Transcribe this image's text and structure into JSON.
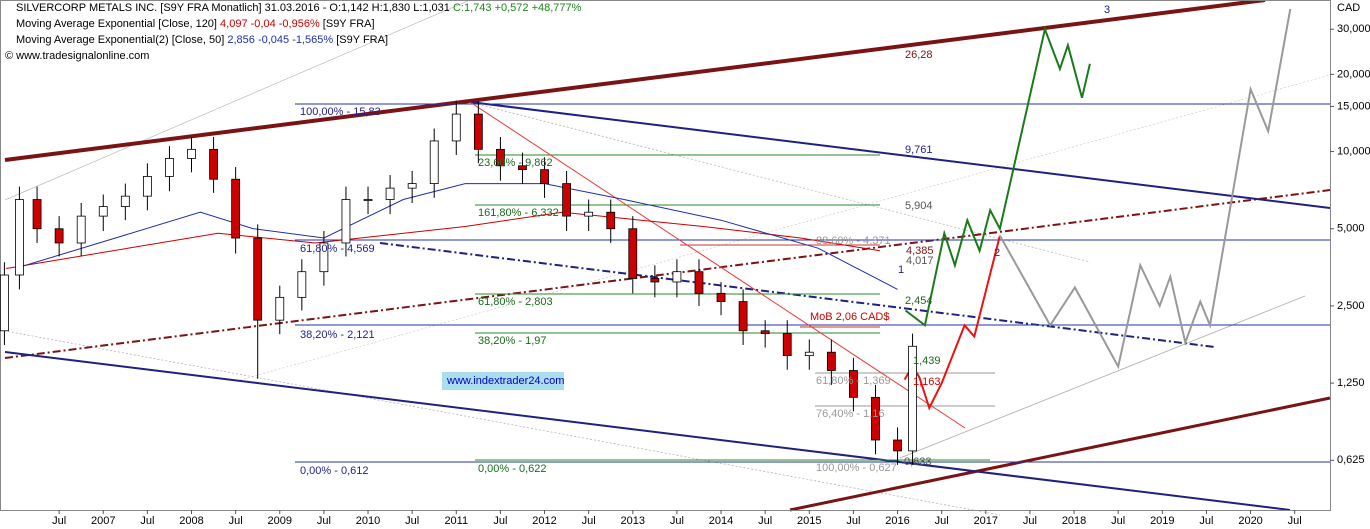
{
  "chart_data": {
    "type": "candlestick",
    "header": {
      "line1": "SILVERCORP METALS INC. [S9Y FRA  Monatlich] 31.03.2016 - O:1,142 H:1,830 L:1,031",
      "line1_change": "C:1,743 +0,572 +48,777%",
      "ma1_name": "Moving Average Exponential [Close, 120]",
      "ma1_values": "4,097 -0,04 -0,956%",
      "ma1_symbol": "[S9Y FRA]",
      "ma2_name": "Moving Average Exponential(2) [Close, 50]",
      "ma2_values": "2,856 -0,045 -1,565%",
      "ma2_symbol": "[S9Y FRA]",
      "source": "© www.tradesignalonline.com"
    },
    "y_unit": "CAD",
    "log_scale": true,
    "grid": false,
    "up_color": "#ffffff",
    "down_color": "#cc0000",
    "xlim": [
      2005.83,
      2020.9
    ],
    "ylim": [
      0.4,
      39
    ],
    "xticks": [
      {
        "value": 2006.5,
        "label": "Jul"
      },
      2007,
      {
        "value": 2007.5,
        "label": "Jul"
      },
      2008,
      {
        "value": 2008.5,
        "label": "Jul"
      },
      2009,
      {
        "value": 2009.5,
        "label": "Jul"
      },
      2010,
      {
        "value": 2010.5,
        "label": "Jul"
      },
      2011,
      {
        "value": 2011.5,
        "label": "Jul"
      },
      2012,
      {
        "value": 2012.5,
        "label": "Jul"
      },
      2013,
      {
        "value": 2013.5,
        "label": "Jul"
      },
      2014,
      {
        "value": 2014.5,
        "label": "Jul"
      },
      2015,
      {
        "value": 2015.5,
        "label": "Jul"
      },
      2016,
      {
        "value": 2016.5,
        "label": "Jul"
      },
      2017,
      {
        "value": 2017.5,
        "label": "Jul"
      },
      2018,
      {
        "value": 2018.5,
        "label": "Jul"
      },
      2019,
      {
        "value": 2019.5,
        "label": "Jul"
      },
      2020,
      {
        "value": 2020.5,
        "label": "Jul"
      }
    ],
    "yticks": [
      {
        "value": 30,
        "label": "30,000"
      },
      {
        "value": 20,
        "label": "20,000"
      },
      {
        "value": 15,
        "label": "15,000"
      },
      {
        "value": 10,
        "label": "10,000"
      },
      {
        "value": 5,
        "label": "5,000"
      },
      {
        "value": 2.5,
        "label": "2,500"
      },
      {
        "value": 1.25,
        "label": "1,250"
      },
      {
        "value": 0.625,
        "label": "0,625"
      }
    ],
    "x": [
      2005.88,
      2006.05,
      2006.25,
      2006.5,
      2006.75,
      2007,
      2007.25,
      2007.5,
      2007.75,
      2008,
      2008.25,
      2008.5,
      2008.75,
      2009,
      2009.25,
      2009.5,
      2009.75,
      2010,
      2010.25,
      2010.5,
      2010.75,
      2011,
      2011.25,
      2011.5,
      2011.75,
      2012,
      2012.25,
      2012.5,
      2012.75,
      2013,
      2013.25,
      2013.5,
      2013.75,
      2014,
      2014.25,
      2014.5,
      2014.75,
      2015,
      2015.25,
      2015.5,
      2015.75,
      2016,
      2016.17
    ],
    "open": [
      2.0,
      3.3,
      6.5,
      5.0,
      4.4,
      5.6,
      6.1,
      6.7,
      8.0,
      9.4,
      10.2,
      7.8,
      4.6,
      2.2,
      2.7,
      3.4,
      4.4,
      6.5,
      6.5,
      7.2,
      7.5,
      11,
      14,
      10.2,
      8.8,
      8.5,
      7.5,
      5.6,
      5.8,
      5.0,
      3.2,
      3.1,
      3.4,
      2.8,
      2.6,
      2.0,
      1.95,
      1.6,
      1.65,
      1.4,
      1.1,
      0.75,
      0.68
    ],
    "high": [
      3.7,
      7.3,
      7.3,
      5.6,
      6.3,
      6.8,
      7.5,
      9.0,
      10.5,
      11.4,
      11.4,
      8.7,
      5.2,
      3.0,
      3.8,
      4.9,
      7.3,
      7.3,
      8.1,
      8.4,
      12.3,
      15.8,
      15.7,
      11.4,
      9.9,
      9.5,
      8.4,
      6.5,
      6.5,
      5.6,
      3.6,
      3.8,
      3.8,
      3.1,
      2.9,
      2.2,
      2.2,
      1.85,
      1.85,
      1.57,
      1.23,
      0.84,
      1.95
    ],
    "low": [
      1.76,
      2.9,
      4.4,
      3.9,
      3.9,
      4.9,
      5.4,
      5.9,
      7.0,
      8.3,
      6.9,
      4.0,
      1.3,
      1.94,
      2.4,
      3.0,
      3.9,
      5.7,
      5.7,
      6.3,
      6.6,
      9.7,
      9.0,
      7.7,
      7.5,
      6.6,
      4.9,
      4.9,
      4.4,
      2.8,
      2.7,
      2.7,
      2.5,
      2.3,
      1.76,
      1.72,
      1.41,
      1.41,
      1.23,
      0.97,
      0.66,
      0.6,
      0.6
    ],
    "close": [
      3.3,
      6.5,
      5.0,
      4.4,
      5.6,
      6.1,
      6.7,
      8.0,
      9.4,
      10.2,
      7.8,
      4.6,
      2.2,
      2.7,
      3.4,
      4.4,
      6.5,
      6.5,
      7.2,
      7.5,
      11,
      14,
      10.2,
      8.8,
      8.5,
      7.5,
      5.6,
      5.8,
      5.0,
      3.2,
      3.1,
      3.4,
      2.8,
      2.6,
      2.0,
      1.95,
      1.6,
      1.65,
      1.4,
      1.1,
      0.75,
      0.68,
      1.74
    ],
    "lines": [
      {
        "color": "#cc0000",
        "width": 1,
        "x": [
          2005.9,
          2008.3,
          2009.4,
          2011.1,
          2012.2,
          2013.8,
          2014.9,
          2015.8
        ],
        "values": [
          3.5,
          4.8,
          4.4,
          5.1,
          5.8,
          5.1,
          4.6,
          4.1
        ]
      },
      {
        "color": "#1f2fa8",
        "width": 1,
        "x": [
          2006.0,
          2006.0,
          2008.1,
          2008.7,
          2009.5,
          2010.4,
          2011.1,
          2012.0,
          2012.9,
          2014.0,
          2015.1,
          2016.0
        ],
        "values": [
          3.5,
          3.5,
          5.8,
          5.0,
          4.6,
          6.5,
          7.5,
          7.5,
          6.5,
          5.4,
          4.2,
          2.9
        ]
      },
      {
        "color": "#1a7a1a",
        "width": 2,
        "x": [
          2016.09,
          2016.31,
          2016.53,
          2016.65,
          2016.79,
          2016.93,
          2017.05,
          2017.16,
          2017.67,
          2017.84,
          2017.93,
          2018.09,
          2018.18
        ],
        "values": [
          2.4,
          2.1,
          4.8,
          3.6,
          5.4,
          4.1,
          5.9,
          5.0,
          30,
          21,
          26,
          16.2,
          22
        ]
      },
      {
        "color": "#ee1111",
        "width": 2,
        "x": [
          2016.08,
          2016.17,
          2016.25,
          2016.36,
          2016.5,
          2016.76,
          2016.87,
          2017.16
        ],
        "values": [
          1.29,
          1.46,
          1.31,
          1.0,
          1.25,
          2.1,
          1.9,
          4.7
        ]
      },
      {
        "color": "#999999",
        "width": 2,
        "x": [
          2017.16,
          2017.73,
          2018.01,
          2018.5,
          2018.75,
          2018.97,
          2019.09,
          2019.26,
          2019.43,
          2019.54,
          2020.0,
          2020.2,
          2020.45
        ],
        "values": [
          4.7,
          2.1,
          2.95,
          1.45,
          3.6,
          2.5,
          3.25,
          1.8,
          2.6,
          2.1,
          17.5,
          12,
          36
        ]
      }
    ],
    "annotations": [
      "3",
      "26,28",
      "100,00% - 15,83",
      "9,761",
      "23,60% - 9,862",
      "161,80% - 6,332",
      "5,904",
      "61,80% - 4,569",
      "88,60% - 4,371",
      "4,385",
      "4,017",
      "2",
      "1",
      "61,80% - 2,803",
      "2,454",
      "MoB 2,06 CAD$",
      "38,20% - 2,121",
      "38,20% - 1,97",
      "1,439",
      "61,80% - 1,369",
      "1,163",
      "76,40% - 1,16",
      "www.indextrader24.com",
      "0,00% - 0,612",
      "0,00% - 0,622",
      "100,00% - 0,627",
      "0,633"
    ]
  }
}
